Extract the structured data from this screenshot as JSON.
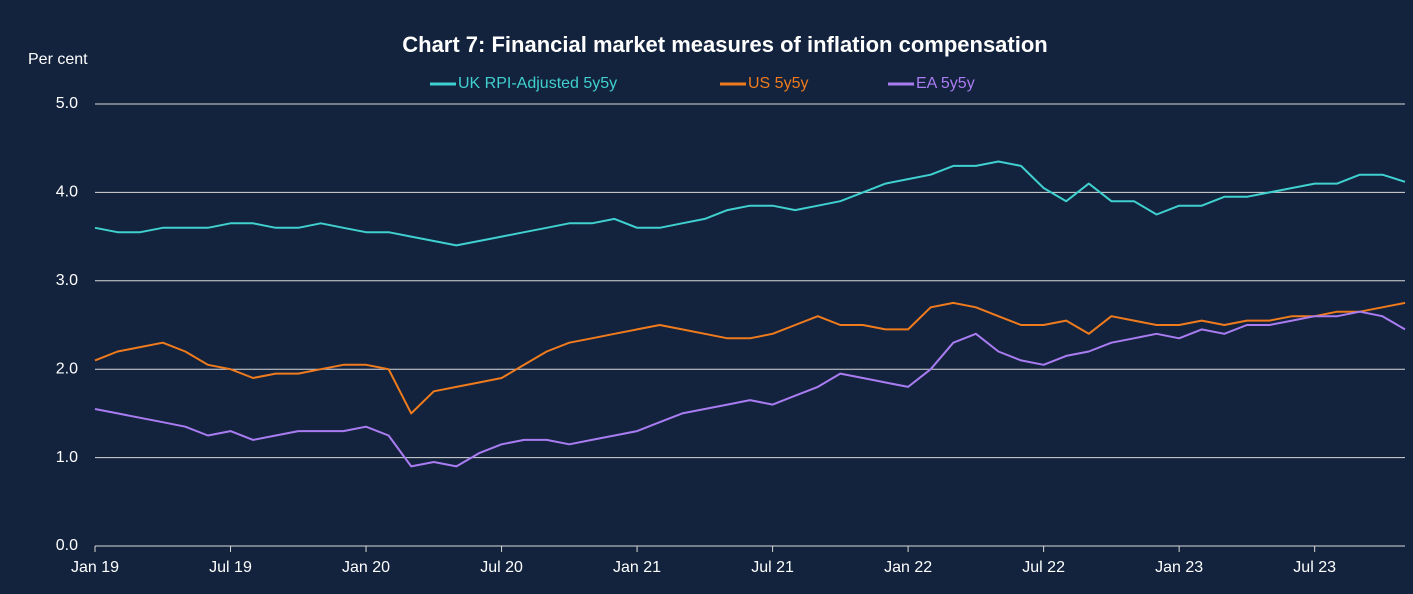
{
  "chart_data": {
    "type": "line",
    "title": "Chart 7: Financial market measures of inflation compensation",
    "y_label": "Per cent",
    "x": [
      "2019-01",
      "2019-02",
      "2019-03",
      "2019-04",
      "2019-05",
      "2019-06",
      "2019-07",
      "2019-08",
      "2019-09",
      "2019-10",
      "2019-11",
      "2019-12",
      "2020-01",
      "2020-02",
      "2020-03",
      "2020-04",
      "2020-05",
      "2020-06",
      "2020-07",
      "2020-08",
      "2020-09",
      "2020-10",
      "2020-11",
      "2020-12",
      "2021-01",
      "2021-02",
      "2021-03",
      "2021-04",
      "2021-05",
      "2021-06",
      "2021-07",
      "2021-08",
      "2021-09",
      "2021-10",
      "2021-11",
      "2021-12",
      "2022-01",
      "2022-02",
      "2022-03",
      "2022-04",
      "2022-05",
      "2022-06",
      "2022-07",
      "2022-08",
      "2022-09",
      "2022-10",
      "2022-11",
      "2022-12",
      "2023-01",
      "2023-02",
      "2023-03",
      "2023-04",
      "2023-05",
      "2023-06",
      "2023-07",
      "2023-08",
      "2023-09",
      "2023-10",
      "2023-11"
    ],
    "series": [
      {
        "name": "UK RPI-Adjusted 5y5y",
        "color": "#3fd0cf",
        "values": [
          3.6,
          3.55,
          3.55,
          3.6,
          3.6,
          3.6,
          3.65,
          3.65,
          3.6,
          3.6,
          3.65,
          3.6,
          3.55,
          3.55,
          3.5,
          3.45,
          3.4,
          3.45,
          3.5,
          3.55,
          3.6,
          3.65,
          3.65,
          3.7,
          3.6,
          3.6,
          3.65,
          3.7,
          3.8,
          3.85,
          3.85,
          3.8,
          3.85,
          3.9,
          4.0,
          4.1,
          4.15,
          4.2,
          4.3,
          4.3,
          4.35,
          4.3,
          4.05,
          3.9,
          4.1,
          3.9,
          3.9,
          3.75,
          3.85,
          3.85,
          3.95,
          3.95,
          4.0,
          4.05,
          4.1,
          4.1,
          4.2,
          4.2,
          4.12
        ]
      },
      {
        "name": "US 5y5y",
        "color": "#f07b1d",
        "values": [
          2.1,
          2.2,
          2.25,
          2.3,
          2.2,
          2.05,
          2.0,
          1.9,
          1.95,
          1.95,
          2.0,
          2.05,
          2.05,
          2.0,
          1.5,
          1.75,
          1.8,
          1.85,
          1.9,
          2.05,
          2.2,
          2.3,
          2.35,
          2.4,
          2.45,
          2.5,
          2.45,
          2.4,
          2.35,
          2.35,
          2.4,
          2.5,
          2.6,
          2.5,
          2.5,
          2.45,
          2.45,
          2.7,
          2.75,
          2.7,
          2.6,
          2.5,
          2.5,
          2.55,
          2.4,
          2.6,
          2.55,
          2.5,
          2.5,
          2.55,
          2.5,
          2.55,
          2.55,
          2.6,
          2.6,
          2.65,
          2.65,
          2.7,
          2.75
        ]
      },
      {
        "name": "EA 5y5y",
        "color": "#a97cf2",
        "values": [
          1.55,
          1.5,
          1.45,
          1.4,
          1.35,
          1.25,
          1.3,
          1.2,
          1.25,
          1.3,
          1.3,
          1.3,
          1.35,
          1.25,
          0.9,
          0.95,
          0.9,
          1.05,
          1.15,
          1.2,
          1.2,
          1.15,
          1.2,
          1.25,
          1.3,
          1.4,
          1.5,
          1.55,
          1.6,
          1.65,
          1.6,
          1.7,
          1.8,
          1.95,
          1.9,
          1.85,
          1.8,
          2.0,
          2.3,
          2.4,
          2.2,
          2.1,
          2.05,
          2.15,
          2.2,
          2.3,
          2.35,
          2.4,
          2.35,
          2.45,
          2.4,
          2.5,
          2.5,
          2.55,
          2.6,
          2.6,
          2.65,
          2.6,
          2.45
        ]
      }
    ],
    "xlim": [
      "2019-01",
      "2023-11"
    ],
    "xticks": [
      {
        "value": "2019-01",
        "label": "Jan 19"
      },
      {
        "value": "2019-07",
        "label": "Jul 19"
      },
      {
        "value": "2020-01",
        "label": "Jan 20"
      },
      {
        "value": "2020-07",
        "label": "Jul 20"
      },
      {
        "value": "2021-01",
        "label": "Jan 21"
      },
      {
        "value": "2021-07",
        "label": "Jul 21"
      },
      {
        "value": "2022-01",
        "label": "Jan 22"
      },
      {
        "value": "2022-07",
        "label": "Jul 22"
      },
      {
        "value": "2023-01",
        "label": "Jan 23"
      },
      {
        "value": "2023-07",
        "label": "Jul 23"
      }
    ],
    "ylim": [
      0,
      5
    ],
    "yticks": [
      {
        "value": 0,
        "label": "0.0"
      },
      {
        "value": 1,
        "label": "1.0"
      },
      {
        "value": 2,
        "label": "2.0"
      },
      {
        "value": 3,
        "label": "3.0"
      },
      {
        "value": 4,
        "label": "4.0"
      },
      {
        "value": 5,
        "label": "5.0"
      }
    ],
    "grid": true
  }
}
